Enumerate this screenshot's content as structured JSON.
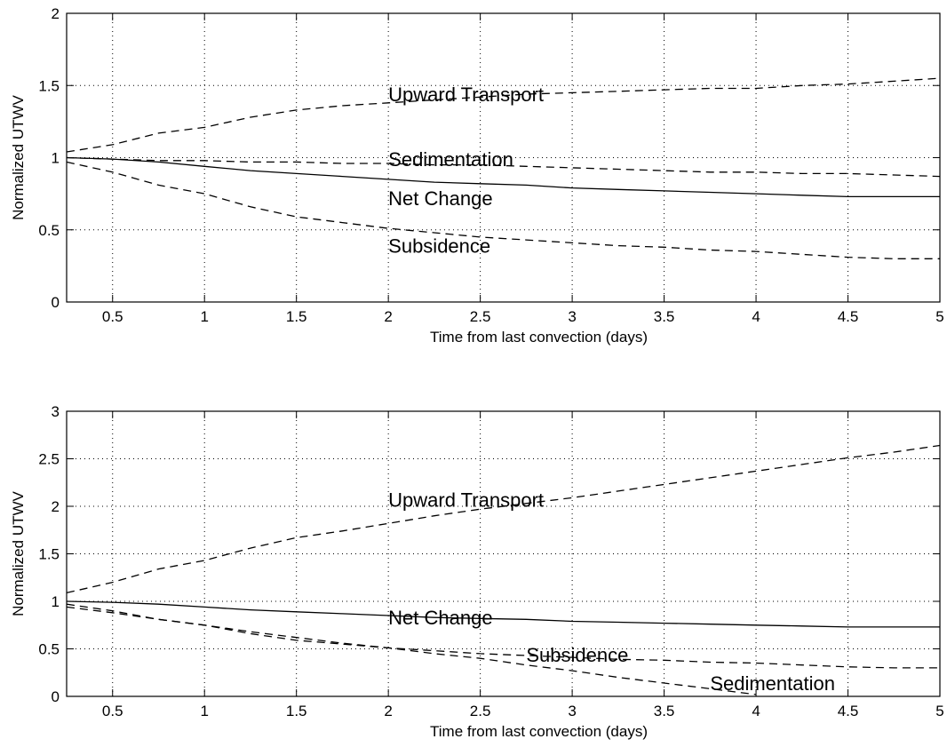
{
  "chart_data": [
    {
      "type": "line",
      "title": "",
      "xlabel": "Time from last convection (days)",
      "ylabel": "Normalized UTWV",
      "xlim": [
        0.25,
        5
      ],
      "ylim": [
        0,
        2
      ],
      "xticks": [
        "0.5",
        "1",
        "1.5",
        "2",
        "2.5",
        "3",
        "3.5",
        "4",
        "4.5",
        "5"
      ],
      "yticks": [
        "0",
        "0.5",
        "1",
        "1.5",
        "2"
      ],
      "grid": true,
      "legend": "none (curves labeled inline)",
      "series": [
        {
          "name": "Upward Transport",
          "style": "dashed",
          "x": [
            0.25,
            0.5,
            0.75,
            1,
            1.25,
            1.5,
            1.75,
            2,
            2.25,
            2.5,
            2.75,
            3,
            3.25,
            3.5,
            3.75,
            4,
            4.25,
            4.5,
            4.75,
            5
          ],
          "y": [
            1.04,
            1.09,
            1.17,
            1.21,
            1.28,
            1.33,
            1.36,
            1.38,
            1.4,
            1.42,
            1.44,
            1.45,
            1.46,
            1.47,
            1.48,
            1.48,
            1.5,
            1.51,
            1.53,
            1.55
          ]
        },
        {
          "name": "Sedimentation",
          "style": "dashed",
          "x": [
            0.25,
            0.5,
            0.75,
            1,
            1.25,
            1.5,
            1.75,
            2,
            2.25,
            2.5,
            2.75,
            3,
            3.25,
            3.5,
            3.75,
            4,
            4.25,
            4.5,
            4.75,
            5
          ],
          "y": [
            1.0,
            0.99,
            0.98,
            0.98,
            0.97,
            0.97,
            0.96,
            0.96,
            0.95,
            0.95,
            0.94,
            0.93,
            0.92,
            0.91,
            0.9,
            0.9,
            0.89,
            0.89,
            0.88,
            0.87
          ]
        },
        {
          "name": "Net Change",
          "style": "solid",
          "x": [
            0.25,
            0.5,
            0.75,
            1,
            1.25,
            1.5,
            1.75,
            2,
            2.25,
            2.5,
            2.75,
            3,
            3.25,
            3.5,
            3.75,
            4,
            4.25,
            4.5,
            4.75,
            5
          ],
          "y": [
            1.0,
            0.99,
            0.97,
            0.94,
            0.91,
            0.89,
            0.87,
            0.85,
            0.83,
            0.82,
            0.81,
            0.79,
            0.78,
            0.77,
            0.76,
            0.75,
            0.74,
            0.73,
            0.73,
            0.73
          ]
        },
        {
          "name": "Subsidence",
          "style": "dashed",
          "x": [
            0.25,
            0.5,
            0.75,
            1,
            1.25,
            1.5,
            1.75,
            2,
            2.25,
            2.5,
            2.75,
            3,
            3.25,
            3.5,
            3.75,
            4,
            4.25,
            4.5,
            4.75,
            5
          ],
          "y": [
            0.97,
            0.9,
            0.81,
            0.75,
            0.66,
            0.59,
            0.55,
            0.51,
            0.48,
            0.45,
            0.43,
            0.41,
            0.39,
            0.38,
            0.36,
            0.35,
            0.33,
            0.31,
            0.3,
            0.3
          ]
        }
      ],
      "annotations": [
        {
          "text": "Upward Transport",
          "x": 2.0,
          "y": 1.44
        },
        {
          "text": "Sedimentation",
          "x": 2.0,
          "y": 0.99
        },
        {
          "text": "Net Change",
          "x": 2.0,
          "y": 0.72
        },
        {
          "text": "Subsidence",
          "x": 2.0,
          "y": 0.39
        }
      ]
    },
    {
      "type": "line",
      "title": "",
      "xlabel": "Time from last convection (days)",
      "ylabel": "Normalized UTWV",
      "xlim": [
        0.25,
        5
      ],
      "ylim": [
        0,
        3
      ],
      "xticks": [
        "0.5",
        "1",
        "1.5",
        "2",
        "2.5",
        "3",
        "3.5",
        "4",
        "4.5",
        "5"
      ],
      "yticks": [
        "0",
        "0.5",
        "1",
        "1.5",
        "2",
        "2.5",
        "3"
      ],
      "grid": true,
      "legend": "none (curves labeled inline)",
      "series": [
        {
          "name": "Upward Transport",
          "style": "dashed",
          "x": [
            0.25,
            0.5,
            0.75,
            1,
            1.25,
            1.5,
            1.75,
            2,
            2.25,
            2.5,
            2.75,
            3,
            3.25,
            3.5,
            3.75,
            4,
            4.25,
            4.5,
            4.75,
            5
          ],
          "y": [
            1.09,
            1.2,
            1.34,
            1.43,
            1.56,
            1.67,
            1.74,
            1.82,
            1.9,
            1.97,
            2.03,
            2.09,
            2.16,
            2.23,
            2.3,
            2.37,
            2.44,
            2.51,
            2.57,
            2.64
          ]
        },
        {
          "name": "Net Change",
          "style": "solid",
          "x": [
            0.25,
            0.5,
            0.75,
            1,
            1.25,
            1.5,
            1.75,
            2,
            2.25,
            2.5,
            2.75,
            3,
            3.25,
            3.5,
            3.75,
            4,
            4.25,
            4.5,
            4.75,
            5
          ],
          "y": [
            1.0,
            0.99,
            0.97,
            0.94,
            0.91,
            0.89,
            0.87,
            0.85,
            0.83,
            0.82,
            0.81,
            0.79,
            0.78,
            0.77,
            0.76,
            0.75,
            0.74,
            0.73,
            0.73,
            0.73
          ]
        },
        {
          "name": "Subsidence",
          "style": "dashed",
          "x": [
            0.25,
            0.5,
            0.75,
            1,
            1.25,
            1.5,
            1.75,
            2,
            2.25,
            2.5,
            2.75,
            3,
            3.25,
            3.5,
            3.75,
            4,
            4.25,
            4.5,
            4.75,
            5
          ],
          "y": [
            0.97,
            0.9,
            0.81,
            0.75,
            0.66,
            0.59,
            0.55,
            0.51,
            0.48,
            0.45,
            0.43,
            0.41,
            0.39,
            0.38,
            0.36,
            0.35,
            0.33,
            0.31,
            0.3,
            0.3
          ]
        },
        {
          "name": "Sedimentation",
          "style": "dashed",
          "x": [
            0.25,
            0.5,
            0.75,
            1,
            1.25,
            1.5,
            1.75,
            2,
            2.25,
            2.5,
            2.75,
            3,
            3.25,
            3.5,
            3.75,
            4
          ],
          "y": [
            0.94,
            0.88,
            0.81,
            0.75,
            0.68,
            0.62,
            0.56,
            0.51,
            0.45,
            0.4,
            0.33,
            0.27,
            0.2,
            0.14,
            0.08,
            0.02
          ]
        }
      ],
      "annotations": [
        {
          "text": "Upward Transport",
          "x": 2.0,
          "y": 2.07
        },
        {
          "text": "Net Change",
          "x": 2.0,
          "y": 0.83
        },
        {
          "text": "Subsidence",
          "x": 2.75,
          "y": 0.44
        },
        {
          "text": "Sedimentation",
          "x": 3.75,
          "y": 0.14
        }
      ]
    }
  ]
}
